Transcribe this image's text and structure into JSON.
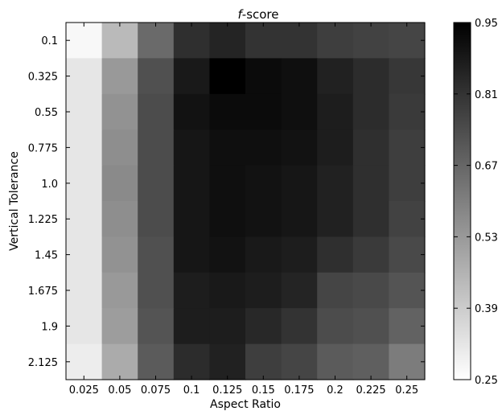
{
  "chart_data": {
    "type": "heatmap",
    "title_italic": "f",
    "title_rest": "-score",
    "xlabel": "Aspect Ratio",
    "ylabel": "Vertical Tolerance",
    "x_categories": [
      "0.025",
      "0.05",
      "0.075",
      "0.1",
      "0.125",
      "0.15",
      "0.175",
      "0.2",
      "0.225",
      "0.25"
    ],
    "y_categories": [
      "0.1",
      "0.325",
      "0.55",
      "0.775",
      "1.0",
      "1.225",
      "1.45",
      "1.675",
      "1.9",
      "2.125"
    ],
    "values": [
      [
        0.27,
        0.44,
        0.66,
        0.82,
        0.85,
        0.81,
        0.81,
        0.78,
        0.77,
        0.76
      ],
      [
        0.32,
        0.53,
        0.73,
        0.88,
        0.95,
        0.92,
        0.91,
        0.86,
        0.83,
        0.8
      ],
      [
        0.32,
        0.55,
        0.74,
        0.9,
        0.92,
        0.92,
        0.91,
        0.87,
        0.83,
        0.79
      ],
      [
        0.32,
        0.56,
        0.74,
        0.89,
        0.91,
        0.91,
        0.9,
        0.87,
        0.82,
        0.78
      ],
      [
        0.32,
        0.57,
        0.74,
        0.89,
        0.91,
        0.9,
        0.89,
        0.86,
        0.82,
        0.78
      ],
      [
        0.32,
        0.56,
        0.74,
        0.89,
        0.91,
        0.9,
        0.89,
        0.86,
        0.82,
        0.77
      ],
      [
        0.32,
        0.55,
        0.73,
        0.89,
        0.9,
        0.88,
        0.87,
        0.82,
        0.79,
        0.75
      ],
      [
        0.32,
        0.53,
        0.73,
        0.87,
        0.88,
        0.87,
        0.85,
        0.76,
        0.75,
        0.72
      ],
      [
        0.32,
        0.52,
        0.72,
        0.87,
        0.87,
        0.84,
        0.81,
        0.74,
        0.73,
        0.68
      ],
      [
        0.3,
        0.48,
        0.7,
        0.83,
        0.86,
        0.78,
        0.76,
        0.7,
        0.69,
        0.61
      ]
    ],
    "colorbar": {
      "min": 0.25,
      "max": 0.95,
      "ticks": [
        "0.95",
        "0.81",
        "0.67",
        "0.53",
        "0.39",
        "0.25"
      ],
      "colormap": "greys",
      "low_color": "#ffffff",
      "high_color": "#000000"
    },
    "grid": false
  }
}
